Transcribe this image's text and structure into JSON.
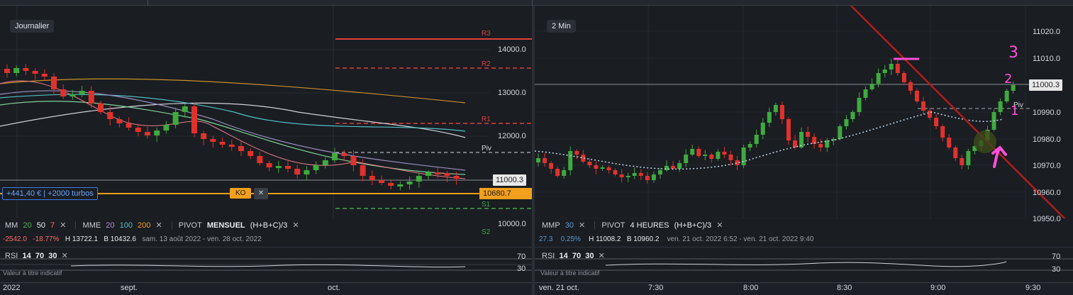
{
  "left": {
    "interval_tag": "Journalier",
    "y_labels": [
      "14000.0",
      "13000.0",
      "12000.0",
      "11000.3",
      "10000.0"
    ],
    "pivot_labels": [
      "R3",
      "R2",
      "R1",
      "Piv",
      "S1",
      "S2"
    ],
    "current_price": "11000.3",
    "ko_price": "10680.7",
    "position_text": "+441,40 € | +2000 turbos",
    "ko_label": "KO",
    "close_glyph": "✕",
    "ind_mm": {
      "name": "MM",
      "p1": "20",
      "p2": "50",
      "p3": "7"
    },
    "ind_mme": {
      "name": "MME",
      "p1": "20",
      "p2": "100",
      "p3": "200"
    },
    "ind_pivot": {
      "name": "PIVOT",
      "period": "MENSUEL",
      "formula": "(H+B+C)/3"
    },
    "stats": {
      "change": "-2542.0",
      "pct": "-18.77%",
      "high": "H 13722.1",
      "low": "B 10432.6",
      "range": "sam. 13 août 2022 - ven. 28 oct. 2022"
    },
    "rsi": {
      "name": "RSI",
      "p1": "14",
      "p2": "70",
      "p3": "30",
      "sub": "Valeur à titre indicatif",
      "lvl_high": "70",
      "lvl_low": "30",
      "lvl_mid": "50"
    },
    "x_labels": [
      "2022",
      "sept.",
      "oct."
    ]
  },
  "right": {
    "interval_tag": "2 Min",
    "y_labels": [
      "11020.0",
      "11010.0",
      "11000.3",
      "10990.0",
      "10980.0",
      "10970.0",
      "10960.0",
      "10950.0"
    ],
    "piv_label": "Piv",
    "current_price": "11000.3",
    "ind_mmp": {
      "name": "MMP",
      "p1": "30"
    },
    "ind_pivot": {
      "name": "PIVOT",
      "period": "4 HEURES",
      "formula": "(H+B+C)/3"
    },
    "stats": {
      "change": "27.3",
      "pct": "0.25%",
      "high": "H 11008.2",
      "low": "B 10960.2",
      "range": "ven. 21 oct. 2022 6:52 - ven. 21 oct. 2022 9:40"
    },
    "rsi": {
      "name": "RSI",
      "p1": "14",
      "p2": "70",
      "p3": "30",
      "sub": "Valeur à titre indicatif",
      "lvl_high": "70",
      "lvl_low": "30"
    },
    "annotations": [
      "3",
      "2",
      "1"
    ],
    "x_labels": [
      "ven. 21 oct.",
      "7:30",
      "8:00",
      "8:30",
      "9:00",
      "9:30"
    ]
  },
  "colors": {
    "up": "#3faa3f",
    "down": "#e0322d",
    "pivot_red": "#e0403a",
    "pivot_green": "#3aa84a",
    "ko_orange": "#f2a01c",
    "annotation": "#ff4fd8"
  }
}
